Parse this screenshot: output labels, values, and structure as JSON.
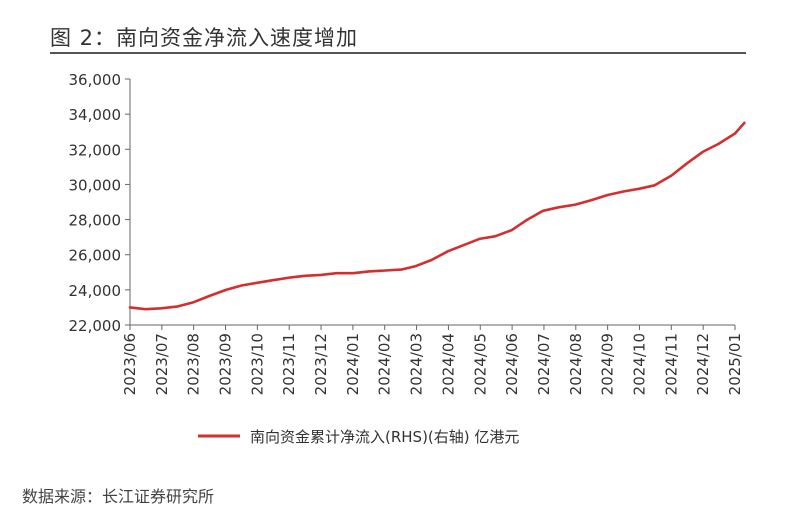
{
  "figure_title": "图 2：南向资金净流入速度增加",
  "source_note": "数据来源：长江证券研究所",
  "colors": {
    "series": "#d32f2f",
    "axis": "#666666",
    "rule": "#555555",
    "text": "#333333"
  },
  "chart_data": {
    "type": "line",
    "title": "",
    "xlabel": "",
    "ylabel": "",
    "grid": false,
    "legend_position": "bottom-center",
    "ylim": [
      22000,
      36000
    ],
    "y_ticks": [
      "22,000",
      "24,000",
      "26,000",
      "28,000",
      "30,000",
      "32,000",
      "34,000",
      "36,000"
    ],
    "y_tick_values": [
      22000,
      24000,
      26000,
      28000,
      30000,
      32000,
      34000,
      36000
    ],
    "x_ticks": [
      "2023/06",
      "2023/07",
      "2023/08",
      "2023/09",
      "2023/10",
      "2023/11",
      "2023/12",
      "2024/01",
      "2024/02",
      "2024/03",
      "2024/04",
      "2024/05",
      "2024/06",
      "2024/07",
      "2024/08",
      "2024/09",
      "2024/10",
      "2024/11",
      "2024/12",
      "2025/01"
    ],
    "series": [
      {
        "name": "南向资金累计净流入(RHS)(右轴) 亿港元",
        "color": "#d32f2f",
        "x": [
          "2023-06-01",
          "2023-06-16",
          "2023-07-01",
          "2023-07-16",
          "2023-08-01",
          "2023-08-16",
          "2023-09-01",
          "2023-09-16",
          "2023-10-01",
          "2023-10-16",
          "2023-11-01",
          "2023-11-16",
          "2023-12-01",
          "2023-12-16",
          "2024-01-01",
          "2024-01-16",
          "2024-02-01",
          "2024-02-16",
          "2024-03-01",
          "2024-03-16",
          "2024-04-01",
          "2024-04-16",
          "2024-05-01",
          "2024-05-16",
          "2024-06-01",
          "2024-06-16",
          "2024-07-01",
          "2024-07-16",
          "2024-08-01",
          "2024-08-16",
          "2024-09-01",
          "2024-09-16",
          "2024-10-01",
          "2024-10-16",
          "2024-11-01",
          "2024-11-16",
          "2024-12-01",
          "2024-12-16",
          "2025-01-01",
          "2025-01-10"
        ],
        "y": [
          23000,
          22900,
          22950,
          23050,
          23300,
          23650,
          24000,
          24250,
          24400,
          24550,
          24700,
          24800,
          24850,
          24950,
          24950,
          25050,
          25100,
          25150,
          25350,
          25700,
          26200,
          26550,
          26900,
          27050,
          27400,
          28000,
          28500,
          28700,
          28850,
          29100,
          29400,
          29600,
          29750,
          29950,
          30500,
          31200,
          31850,
          32300,
          32900,
          33500
        ]
      }
    ]
  }
}
